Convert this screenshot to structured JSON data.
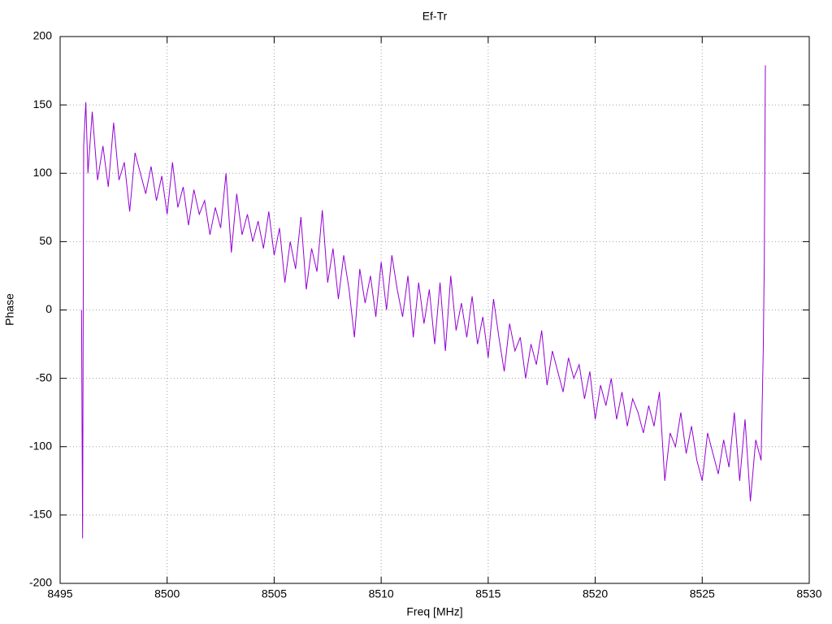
{
  "chart_data": {
    "type": "line",
    "title": "Ef-Tr",
    "x_label": "Freq [MHz]",
    "y_label": "Phase",
    "x": [
      8496.0,
      8496.05,
      8496.1,
      8496.2,
      8496.3,
      8496.5,
      8496.75,
      8497.0,
      8497.25,
      8497.5,
      8497.75,
      8498.0,
      8498.25,
      8498.5,
      8498.75,
      8499.0,
      8499.25,
      8499.5,
      8499.75,
      8500.0,
      8500.25,
      8500.5,
      8500.75,
      8501.0,
      8501.25,
      8501.5,
      8501.75,
      8502.0,
      8502.25,
      8502.5,
      8502.75,
      8503.0,
      8503.25,
      8503.5,
      8503.75,
      8504.0,
      8504.25,
      8504.5,
      8504.75,
      8505.0,
      8505.25,
      8505.5,
      8505.75,
      8506.0,
      8506.25,
      8506.5,
      8506.75,
      8507.0,
      8507.25,
      8507.5,
      8507.75,
      8508.0,
      8508.25,
      8508.5,
      8508.75,
      8509.0,
      8509.25,
      8509.5,
      8509.75,
      8510.0,
      8510.25,
      8510.5,
      8510.75,
      8511.0,
      8511.25,
      8511.5,
      8511.75,
      8512.0,
      8512.25,
      8512.5,
      8512.75,
      8513.0,
      8513.25,
      8513.5,
      8513.75,
      8514.0,
      8514.25,
      8514.5,
      8514.75,
      8515.0,
      8515.25,
      8515.5,
      8515.75,
      8516.0,
      8516.25,
      8516.5,
      8516.75,
      8517.0,
      8517.25,
      8517.5,
      8517.75,
      8518.0,
      8518.25,
      8518.5,
      8518.75,
      8519.0,
      8519.25,
      8519.5,
      8519.75,
      8520.0,
      8520.25,
      8520.5,
      8520.75,
      8521.0,
      8521.25,
      8521.5,
      8521.75,
      8522.0,
      8522.25,
      8522.5,
      8522.75,
      8523.0,
      8523.25,
      8523.5,
      8523.75,
      8524.0,
      8524.25,
      8524.5,
      8524.75,
      8525.0,
      8525.25,
      8525.5,
      8525.75,
      8526.0,
      8526.25,
      8526.5,
      8526.75,
      8527.0,
      8527.25,
      8527.5,
      8527.75,
      8527.85,
      8527.9,
      8527.95
    ],
    "series": [
      {
        "color": "#9400d3",
        "values": [
          0,
          -167,
          120,
          152,
          100,
          145,
          95,
          120,
          90,
          137,
          95,
          108,
          72,
          115,
          100,
          85,
          105,
          80,
          98,
          70,
          108,
          75,
          90,
          62,
          88,
          70,
          80,
          55,
          75,
          60,
          100,
          42,
          85,
          55,
          70,
          50,
          65,
          45,
          72,
          40,
          60,
          20,
          50,
          30,
          68,
          15,
          45,
          28,
          73,
          20,
          45,
          8,
          40,
          15,
          -20,
          30,
          5,
          25,
          -5,
          35,
          0,
          40,
          15,
          -5,
          25,
          -20,
          20,
          -10,
          15,
          -25,
          20,
          -30,
          25,
          -15,
          5,
          -20,
          10,
          -25,
          -5,
          -35,
          8,
          -20,
          -45,
          -10,
          -30,
          -20,
          -50,
          -25,
          -40,
          -15,
          -55,
          -30,
          -45,
          -60,
          -35,
          -50,
          -40,
          -65,
          -45,
          -80,
          -55,
          -70,
          -50,
          -80,
          -60,
          -85,
          -65,
          -75,
          -90,
          -70,
          -85,
          -60,
          -125,
          -90,
          -100,
          -75,
          -105,
          -85,
          -110,
          -125,
          -90,
          -105,
          -120,
          -95,
          -115,
          -75,
          -125,
          -80,
          -140,
          -95,
          -110,
          -30,
          35,
          179
        ]
      }
    ],
    "xlim": [
      8495,
      8530
    ],
    "xticks": [
      8495,
      8500,
      8505,
      8510,
      8515,
      8520,
      8525,
      8530
    ],
    "ylim": [
      -200,
      200
    ],
    "yticks": [
      -200,
      -150,
      -100,
      -50,
      0,
      50,
      100,
      150,
      200
    ],
    "grid": true
  }
}
